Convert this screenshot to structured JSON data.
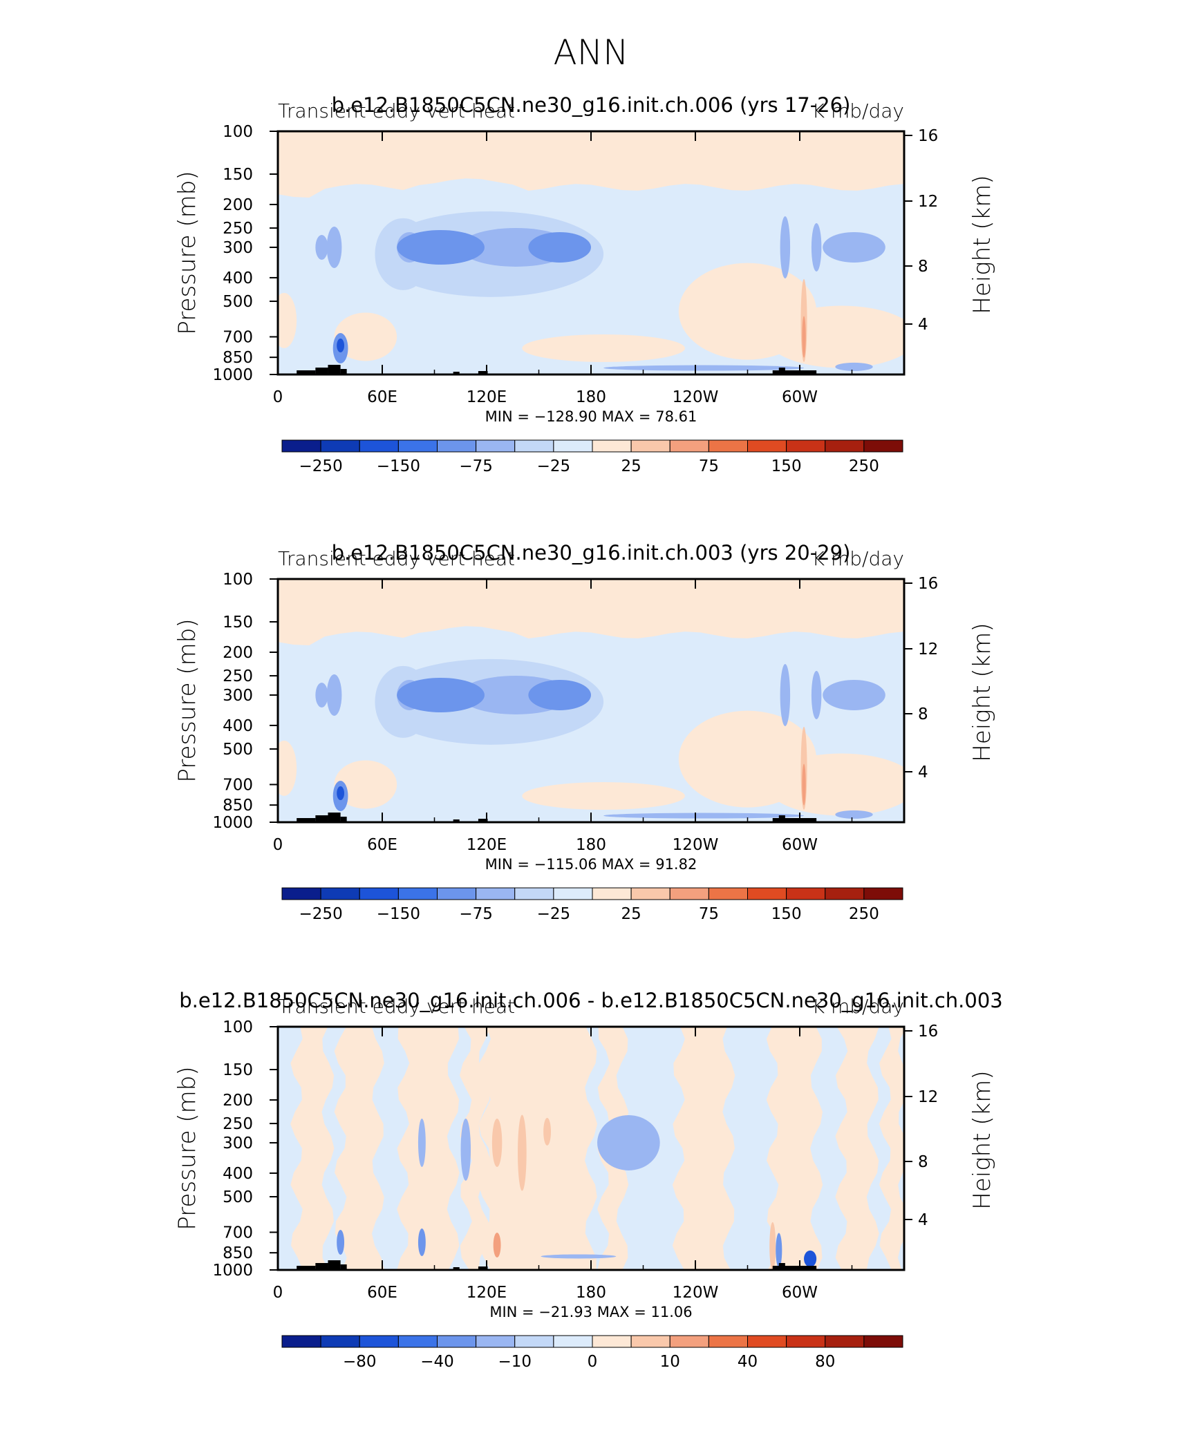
{
  "page": {
    "title": "ANN"
  },
  "chart_data": [
    {
      "type": "heatmap",
      "title": "b.e12.B1850C5CN.ne30_g16.init.ch.006 (yrs 17-26)",
      "left_label": "Transient eddy vert heat",
      "right_label": "K mb/day",
      "xlabel": "",
      "ylabel": "Pressure (mb)",
      "ylabel_right": "Height (km)",
      "x_ticks": [
        "0",
        "60E",
        "120E",
        "180",
        "120W",
        "60W"
      ],
      "y_ticks": [
        "100",
        "150",
        "200",
        "250",
        "300",
        "400",
        "500",
        "700",
        "850",
        "1000"
      ],
      "y_ticks_right": [
        "16",
        "12",
        "8",
        "4"
      ],
      "ylim": [
        1000,
        100
      ],
      "y_scale": "log",
      "stats_text": "MIN = −128.90   MAX =   78.61",
      "min": -128.9,
      "max": 78.61,
      "colorbar_labels": [
        "−250",
        "−150",
        "−75",
        "−25",
        "25",
        "75",
        "150",
        "250"
      ],
      "colorbar_colors": [
        "#0a1e8c",
        "#0e3bb5",
        "#1d54d9",
        "#3b73e8",
        "#6c95ec",
        "#9ab6f2",
        "#c3d8f7",
        "#dcebfb",
        "#fde8d6",
        "#f9c8ab",
        "#f3a07e",
        "#ec7446",
        "#e04b22",
        "#c93217",
        "#a6200f",
        "#7d0d08"
      ]
    },
    {
      "type": "heatmap",
      "title": "b.e12.B1850C5CN.ne30_g16.init.ch.003 (yrs 20-29)",
      "left_label": "Transient eddy vert heat",
      "right_label": "K mb/day",
      "xlabel": "",
      "ylabel": "Pressure (mb)",
      "ylabel_right": "Height (km)",
      "x_ticks": [
        "0",
        "60E",
        "120E",
        "180",
        "120W",
        "60W"
      ],
      "y_ticks": [
        "100",
        "150",
        "200",
        "250",
        "300",
        "400",
        "500",
        "700",
        "850",
        "1000"
      ],
      "y_ticks_right": [
        "16",
        "12",
        "8",
        "4"
      ],
      "ylim": [
        1000,
        100
      ],
      "y_scale": "log",
      "stats_text": "MIN = −115.06   MAX =   91.82",
      "min": -115.06,
      "max": 91.82,
      "colorbar_labels": [
        "−250",
        "−150",
        "−75",
        "−25",
        "25",
        "75",
        "150",
        "250"
      ],
      "colorbar_colors": [
        "#0a1e8c",
        "#0e3bb5",
        "#1d54d9",
        "#3b73e8",
        "#6c95ec",
        "#9ab6f2",
        "#c3d8f7",
        "#dcebfb",
        "#fde8d6",
        "#f9c8ab",
        "#f3a07e",
        "#ec7446",
        "#e04b22",
        "#c93217",
        "#a6200f",
        "#7d0d08"
      ]
    },
    {
      "type": "heatmap",
      "title": "b.e12.B1850C5CN.ne30_g16.init.ch.006 - b.e12.B1850C5CN.ne30_g16.init.ch.003",
      "left_label": "Transient eddy vert heat",
      "right_label": "K mb/day",
      "xlabel": "",
      "ylabel": "Pressure (mb)",
      "ylabel_right": "Height (km)",
      "x_ticks": [
        "0",
        "60E",
        "120E",
        "180",
        "120W",
        "60W"
      ],
      "y_ticks": [
        "100",
        "150",
        "200",
        "250",
        "300",
        "400",
        "500",
        "700",
        "850",
        "1000"
      ],
      "y_ticks_right": [
        "16",
        "12",
        "8",
        "4"
      ],
      "ylim": [
        1000,
        100
      ],
      "y_scale": "log",
      "stats_text": "MIN =  −21.93   MAX =   11.06",
      "min": -21.93,
      "max": 11.06,
      "colorbar_labels": [
        "−80",
        "−40",
        "−10",
        "0",
        "10",
        "40",
        "80"
      ],
      "colorbar_colors": [
        "#0a1e8c",
        "#0e3bb5",
        "#1d54d9",
        "#3b73e8",
        "#6c95ec",
        "#9ab6f2",
        "#c3d8f7",
        "#dcebfb",
        "#fde8d6",
        "#f9c8ab",
        "#f3a07e",
        "#ec7446",
        "#e04b22",
        "#c93217",
        "#a6200f",
        "#7d0d08"
      ]
    }
  ],
  "colors": {
    "pale_red": "#fde8d6",
    "pale_blue": "#dcebfb",
    "light_blue": "#c3d8f7",
    "mid_blue": "#9ab6f2",
    "blue": "#6c95ec",
    "red_light": "#f9c8ab",
    "red_mid": "#f3a07e",
    "dark_blue": "#1d54d9",
    "topography": "#000000"
  }
}
